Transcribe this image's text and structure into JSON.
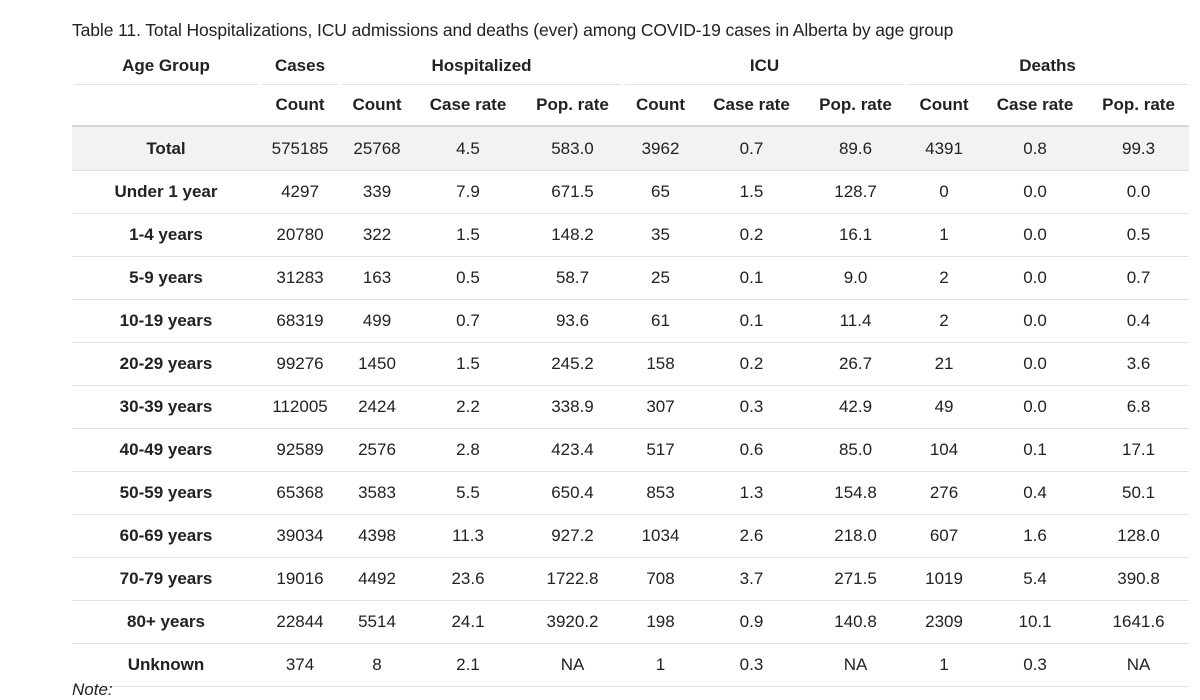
{
  "caption": "Table 11. Total Hospitalizations, ICU admissions and deaths (ever) among COVID-19 cases in Alberta by age group",
  "header": {
    "age_group": "Age Group",
    "cases": "Cases",
    "hospitalized": "Hospitalized",
    "icu": "ICU",
    "deaths": "Deaths",
    "sub": [
      "Count",
      "Count",
      "Case rate",
      "Pop. rate",
      "Count",
      "Case rate",
      "Pop. rate",
      "Count",
      "Case rate",
      "Pop. rate"
    ]
  },
  "rows": [
    {
      "age": "Total",
      "cases": "575185",
      "hosp_count": "25768",
      "hosp_case_rate": "4.5",
      "hosp_pop_rate": "583.0",
      "icu_count": "3962",
      "icu_case_rate": "0.7",
      "icu_pop_rate": "89.6",
      "death_count": "4391",
      "death_case_rate": "0.8",
      "death_pop_rate": "99.3"
    },
    {
      "age": "Under 1 year",
      "cases": "4297",
      "hosp_count": "339",
      "hosp_case_rate": "7.9",
      "hosp_pop_rate": "671.5",
      "icu_count": "65",
      "icu_case_rate": "1.5",
      "icu_pop_rate": "128.7",
      "death_count": "0",
      "death_case_rate": "0.0",
      "death_pop_rate": "0.0"
    },
    {
      "age": "1-4 years",
      "cases": "20780",
      "hosp_count": "322",
      "hosp_case_rate": "1.5",
      "hosp_pop_rate": "148.2",
      "icu_count": "35",
      "icu_case_rate": "0.2",
      "icu_pop_rate": "16.1",
      "death_count": "1",
      "death_case_rate": "0.0",
      "death_pop_rate": "0.5"
    },
    {
      "age": "5-9 years",
      "cases": "31283",
      "hosp_count": "163",
      "hosp_case_rate": "0.5",
      "hosp_pop_rate": "58.7",
      "icu_count": "25",
      "icu_case_rate": "0.1",
      "icu_pop_rate": "9.0",
      "death_count": "2",
      "death_case_rate": "0.0",
      "death_pop_rate": "0.7"
    },
    {
      "age": "10-19 years",
      "cases": "68319",
      "hosp_count": "499",
      "hosp_case_rate": "0.7",
      "hosp_pop_rate": "93.6",
      "icu_count": "61",
      "icu_case_rate": "0.1",
      "icu_pop_rate": "11.4",
      "death_count": "2",
      "death_case_rate": "0.0",
      "death_pop_rate": "0.4"
    },
    {
      "age": "20-29 years",
      "cases": "99276",
      "hosp_count": "1450",
      "hosp_case_rate": "1.5",
      "hosp_pop_rate": "245.2",
      "icu_count": "158",
      "icu_case_rate": "0.2",
      "icu_pop_rate": "26.7",
      "death_count": "21",
      "death_case_rate": "0.0",
      "death_pop_rate": "3.6"
    },
    {
      "age": "30-39 years",
      "cases": "112005",
      "hosp_count": "2424",
      "hosp_case_rate": "2.2",
      "hosp_pop_rate": "338.9",
      "icu_count": "307",
      "icu_case_rate": "0.3",
      "icu_pop_rate": "42.9",
      "death_count": "49",
      "death_case_rate": "0.0",
      "death_pop_rate": "6.8"
    },
    {
      "age": "40-49 years",
      "cases": "92589",
      "hosp_count": "2576",
      "hosp_case_rate": "2.8",
      "hosp_pop_rate": "423.4",
      "icu_count": "517",
      "icu_case_rate": "0.6",
      "icu_pop_rate": "85.0",
      "death_count": "104",
      "death_case_rate": "0.1",
      "death_pop_rate": "17.1"
    },
    {
      "age": "50-59 years",
      "cases": "65368",
      "hosp_count": "3583",
      "hosp_case_rate": "5.5",
      "hosp_pop_rate": "650.4",
      "icu_count": "853",
      "icu_case_rate": "1.3",
      "icu_pop_rate": "154.8",
      "death_count": "276",
      "death_case_rate": "0.4",
      "death_pop_rate": "50.1"
    },
    {
      "age": "60-69 years",
      "cases": "39034",
      "hosp_count": "4398",
      "hosp_case_rate": "11.3",
      "hosp_pop_rate": "927.2",
      "icu_count": "1034",
      "icu_case_rate": "2.6",
      "icu_pop_rate": "218.0",
      "death_count": "607",
      "death_case_rate": "1.6",
      "death_pop_rate": "128.0"
    },
    {
      "age": "70-79 years",
      "cases": "19016",
      "hosp_count": "4492",
      "hosp_case_rate": "23.6",
      "hosp_pop_rate": "1722.8",
      "icu_count": "708",
      "icu_case_rate": "3.7",
      "icu_pop_rate": "271.5",
      "death_count": "1019",
      "death_case_rate": "5.4",
      "death_pop_rate": "390.8"
    },
    {
      "age": "80+ years",
      "cases": "22844",
      "hosp_count": "5514",
      "hosp_case_rate": "24.1",
      "hosp_pop_rate": "3920.2",
      "icu_count": "198",
      "icu_case_rate": "0.9",
      "icu_pop_rate": "140.8",
      "death_count": "2309",
      "death_case_rate": "10.1",
      "death_pop_rate": "1641.6"
    },
    {
      "age": "Unknown",
      "cases": "374",
      "hosp_count": "8",
      "hosp_case_rate": "2.1",
      "hosp_pop_rate": "NA",
      "icu_count": "1",
      "icu_case_rate": "0.3",
      "icu_pop_rate": "NA",
      "death_count": "1",
      "death_case_rate": "0.3",
      "death_pop_rate": "NA"
    }
  ],
  "note_label": "Note:"
}
